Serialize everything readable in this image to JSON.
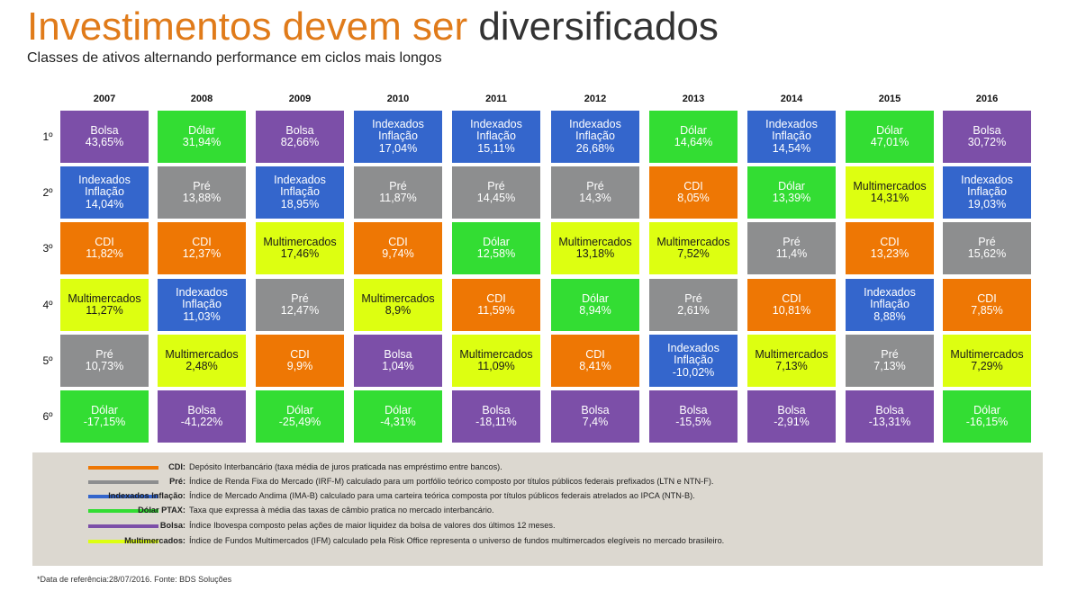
{
  "title": {
    "part1": "Investimentos devem ser",
    "part2": "diversificados"
  },
  "subtitle": "Classes de ativos alternando performance em ciclos mais longos",
  "colors": {
    "CDI": "#ee7704",
    "Pré": "#8d8e8f",
    "Indexados Inflação": "#3466cc",
    "Dólar": "#33dd33",
    "Bolsa": "#7c4fa8",
    "Multimercados": "#ddff11"
  },
  "chart_data": {
    "type": "table",
    "years": [
      "2007",
      "2008",
      "2009",
      "2010",
      "2011",
      "2012",
      "2013",
      "2014",
      "2015",
      "2016"
    ],
    "ranks": [
      "1º",
      "2º",
      "3º",
      "4º",
      "5º",
      "6º"
    ],
    "grid": [
      [
        {
          "asset": "Bolsa",
          "lines": [
            "Bolsa"
          ],
          "value": "43,65%"
        },
        {
          "asset": "Indexados Inflação",
          "lines": [
            "Indexados",
            "Inflação"
          ],
          "value": "14,04%"
        },
        {
          "asset": "CDI",
          "lines": [
            "CDI"
          ],
          "value": "11,82%"
        },
        {
          "asset": "Multimercados",
          "lines": [
            "Multimercados"
          ],
          "value": "11,27%"
        },
        {
          "asset": "Pré",
          "lines": [
            "Pré"
          ],
          "value": "10,73%"
        },
        {
          "asset": "Dólar",
          "lines": [
            "Dólar"
          ],
          "value": "-17,15%"
        }
      ],
      [
        {
          "asset": "Dólar",
          "lines": [
            "Dólar"
          ],
          "value": "31,94%"
        },
        {
          "asset": "Pré",
          "lines": [
            "Pré"
          ],
          "value": "13,88%"
        },
        {
          "asset": "CDI",
          "lines": [
            "CDI"
          ],
          "value": "12,37%"
        },
        {
          "asset": "Indexados Inflação",
          "lines": [
            "Indexados",
            "Inflação"
          ],
          "value": "11,03%"
        },
        {
          "asset": "Multimercados",
          "lines": [
            "Multimercados"
          ],
          "value": "2,48%"
        },
        {
          "asset": "Bolsa",
          "lines": [
            "Bolsa"
          ],
          "value": "-41,22%"
        }
      ],
      [
        {
          "asset": "Bolsa",
          "lines": [
            "Bolsa"
          ],
          "value": "82,66%"
        },
        {
          "asset": "Indexados Inflação",
          "lines": [
            "Indexados",
            "Inflação"
          ],
          "value": "18,95%"
        },
        {
          "asset": "Multimercados",
          "lines": [
            "Multimercados"
          ],
          "value": "17,46%"
        },
        {
          "asset": "Pré",
          "lines": [
            "Pré"
          ],
          "value": "12,47%"
        },
        {
          "asset": "CDI",
          "lines": [
            "CDI"
          ],
          "value": "9,9%"
        },
        {
          "asset": "Dólar",
          "lines": [
            "Dólar"
          ],
          "value": "-25,49%"
        }
      ],
      [
        {
          "asset": "Indexados Inflação",
          "lines": [
            "Indexados",
            "Inflação"
          ],
          "value": "17,04%"
        },
        {
          "asset": "Pré",
          "lines": [
            "Pré"
          ],
          "value": "11,87%"
        },
        {
          "asset": "CDI",
          "lines": [
            "CDI"
          ],
          "value": "9,74%"
        },
        {
          "asset": "Multimercados",
          "lines": [
            "Multimercados"
          ],
          "value": "8,9%"
        },
        {
          "asset": "Bolsa",
          "lines": [
            "Bolsa"
          ],
          "value": "1,04%"
        },
        {
          "asset": "Dólar",
          "lines": [
            "Dólar"
          ],
          "value": "-4,31%"
        }
      ],
      [
        {
          "asset": "Indexados Inflação",
          "lines": [
            "Indexados",
            "Inflação"
          ],
          "value": "15,11%"
        },
        {
          "asset": "Pré",
          "lines": [
            "Pré"
          ],
          "value": "14,45%"
        },
        {
          "asset": "Dólar",
          "lines": [
            "Dólar"
          ],
          "value": "12,58%"
        },
        {
          "asset": "CDI",
          "lines": [
            "CDI"
          ],
          "value": "11,59%"
        },
        {
          "asset": "Multimercados",
          "lines": [
            "Multimercados"
          ],
          "value": "11,09%"
        },
        {
          "asset": "Bolsa",
          "lines": [
            "Bolsa"
          ],
          "value": "-18,11%"
        }
      ],
      [
        {
          "asset": "Indexados Inflação",
          "lines": [
            "Indexados",
            "Inflação"
          ],
          "value": "26,68%"
        },
        {
          "asset": "Pré",
          "lines": [
            "Pré"
          ],
          "value": "14,3%"
        },
        {
          "asset": "Multimercados",
          "lines": [
            "Multimercados"
          ],
          "value": "13,18%"
        },
        {
          "asset": "Dólar",
          "lines": [
            "Dólar"
          ],
          "value": "8,94%"
        },
        {
          "asset": "CDI",
          "lines": [
            "CDI"
          ],
          "value": "8,41%"
        },
        {
          "asset": "Bolsa",
          "lines": [
            "Bolsa"
          ],
          "value": "7,4%"
        }
      ],
      [
        {
          "asset": "Dólar",
          "lines": [
            "Dólar"
          ],
          "value": "14,64%"
        },
        {
          "asset": "CDI",
          "lines": [
            "CDI"
          ],
          "value": "8,05%"
        },
        {
          "asset": "Multimercados",
          "lines": [
            "Multimercados"
          ],
          "value": "7,52%"
        },
        {
          "asset": "Pré",
          "lines": [
            "Pré"
          ],
          "value": "2,61%"
        },
        {
          "asset": "Indexados Inflação",
          "lines": [
            "Indexados",
            "Inflação"
          ],
          "value": "-10,02%"
        },
        {
          "asset": "Bolsa",
          "lines": [
            "Bolsa"
          ],
          "value": "-15,5%"
        }
      ],
      [
        {
          "asset": "Indexados Inflação",
          "lines": [
            "Indexados",
            "Inflação"
          ],
          "value": "14,54%"
        },
        {
          "asset": "Dólar",
          "lines": [
            "Dólar"
          ],
          "value": "13,39%"
        },
        {
          "asset": "Pré",
          "lines": [
            "Pré"
          ],
          "value": "11,4%"
        },
        {
          "asset": "CDI",
          "lines": [
            "CDI"
          ],
          "value": "10,81%"
        },
        {
          "asset": "Multimercados",
          "lines": [
            "Multimercados"
          ],
          "value": "7,13%"
        },
        {
          "asset": "Bolsa",
          "lines": [
            "Bolsa"
          ],
          "value": "-2,91%"
        }
      ],
      [
        {
          "asset": "Dólar",
          "lines": [
            "Dólar"
          ],
          "value": "47,01%"
        },
        {
          "asset": "Multimercados",
          "lines": [
            "Multimercados"
          ],
          "value": "14,31%"
        },
        {
          "asset": "CDI",
          "lines": [
            "CDI"
          ],
          "value": "13,23%"
        },
        {
          "asset": "Indexados Inflação",
          "lines": [
            "Indexados",
            "Inflação"
          ],
          "value": "8,88%"
        },
        {
          "asset": "Pré",
          "lines": [
            "Pré"
          ],
          "value": "7,13%"
        },
        {
          "asset": "Bolsa",
          "lines": [
            "Bolsa"
          ],
          "value": "-13,31%"
        }
      ],
      [
        {
          "asset": "Bolsa",
          "lines": [
            "Bolsa"
          ],
          "value": "30,72%"
        },
        {
          "asset": "Indexados Inflação",
          "lines": [
            "Indexados",
            "Inflação"
          ],
          "value": "19,03%"
        },
        {
          "asset": "Pré",
          "lines": [
            "Pré"
          ],
          "value": "15,62%"
        },
        {
          "asset": "CDI",
          "lines": [
            "CDI"
          ],
          "value": "7,85%"
        },
        {
          "asset": "Multimercados",
          "lines": [
            "Multimercados"
          ],
          "value": "7,29%"
        },
        {
          "asset": "Dólar",
          "lines": [
            "Dólar"
          ],
          "value": "-16,15%"
        }
      ]
    ]
  },
  "legend": [
    {
      "asset": "CDI",
      "term": "CDI:",
      "text": "Depósito Interbancário (taxa média de  juros praticada nas empréstimo entre bancos)."
    },
    {
      "asset": "Pré",
      "term": "Pré:",
      "text": "Índice de Renda Fixa do Mercado (IRF-M) calculado para um portfólio teórico composto por títulos públicos federais prefixados (LTN e NTN-F)."
    },
    {
      "asset": "Indexados Inflação",
      "term": "Indexados Inflação:",
      "text": "Índice de Mercado Andima (IMA-B) calculado para uma carteira teórica composta por títulos públicos federais atrelados ao IPCA (NTN-B)."
    },
    {
      "asset": "Dólar",
      "term": "Dólar PTAX:",
      "text": "Taxa que expressa à média  das taxas de câmbio pratica no mercado interbancário."
    },
    {
      "asset": "Bolsa",
      "term": "Bolsa:",
      "text": "Índice Ibovespa composto pelas ações de maior liquidez da bolsa de valores dos últimos 12 meses."
    },
    {
      "asset": "Multimercados",
      "term": "Multimercados:",
      "text": "Índice de Fundos Multimercados (IFM) calculado pela Risk Office representa o universo de fundos multimercados elegíveis no mercado brasileiro."
    }
  ],
  "footnote": "*Data de referência:28/07/2016. Fonte: BDS Soluções"
}
